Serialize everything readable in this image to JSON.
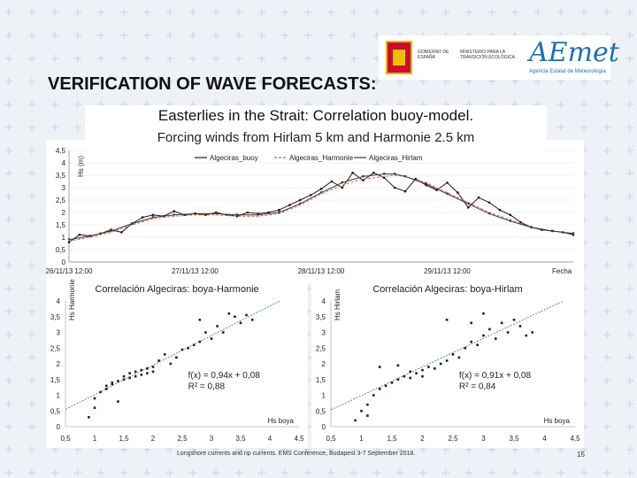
{
  "slide": {
    "title": "VERIFICATION OF WAVE FORECASTS:",
    "subtitle_line1": "Easterlies in the Strait: Correlation buoy-model.",
    "subtitle_line2": "Forcing winds from Hirlam 5 km and Harmonie 2.5 km",
    "footer": "Longshore currents and rip currents. EMS Conference, Budapest 3-7 September 2018.",
    "page_number": "15",
    "logos": {
      "gov_text": "GOBIERNO DE ESPAÑA",
      "ministry_text": "MINISTERIO PARA LA TRANSICIÓN ECOLÓGICA",
      "aemet_text": "AEmet",
      "aemet_sub": "Agencia Estatal de Meteorología"
    }
  },
  "colors": {
    "buoy": "#1a1a1a",
    "harmonie": "#e05a3a",
    "hirlam": "#3a3a3a",
    "trend": "#2a6fb0",
    "brand_blue": "#1f6fb5",
    "cross_pattern": "#d6dbe3"
  },
  "chart_data": [
    {
      "type": "line",
      "xlabel": "Fecha",
      "ylabel": "Hs (m)",
      "ylim": [
        0,
        4.5
      ],
      "yticks": [
        "0",
        "0,5",
        "1",
        "1,5",
        "2",
        "2,5",
        "3",
        "3,5",
        "4",
        "4,5"
      ],
      "xticks": [
        "26/11/13 12:00",
        "27/11/13 12:00",
        "28/11/13 12:00",
        "29/11/13 12:00"
      ],
      "x_range_hours": [
        0,
        96
      ],
      "legend": "top",
      "series": [
        {
          "name": "Algeciras_buoy",
          "marker": "dot",
          "x": [
            0,
            2,
            4,
            6,
            8,
            10,
            12,
            14,
            16,
            18,
            20,
            22,
            24,
            26,
            28,
            30,
            32,
            34,
            36,
            38,
            40,
            42,
            44,
            46,
            48,
            50,
            52,
            54,
            56,
            58,
            60,
            62,
            64,
            66,
            68,
            70,
            72,
            74,
            76,
            78,
            80,
            82,
            84,
            86,
            88,
            90,
            92,
            94,
            96
          ],
          "y": [
            0.8,
            1.1,
            1.05,
            1.15,
            1.3,
            1.2,
            1.55,
            1.8,
            1.9,
            1.85,
            2.05,
            1.9,
            1.95,
            1.9,
            2.0,
            1.9,
            1.85,
            2.0,
            1.95,
            2.0,
            2.1,
            2.3,
            2.5,
            2.7,
            2.95,
            3.25,
            3.0,
            3.6,
            3.3,
            3.6,
            3.4,
            3.0,
            2.85,
            3.35,
            3.1,
            2.9,
            3.2,
            2.8,
            2.2,
            2.6,
            2.4,
            2.1,
            1.9,
            1.6,
            1.4,
            1.3,
            1.25,
            1.2,
            1.1
          ]
        },
        {
          "name": "Algeciras_Harmonie",
          "marker": "dash",
          "x": [
            0,
            4,
            8,
            12,
            16,
            20,
            24,
            28,
            32,
            36,
            40,
            44,
            48,
            52,
            56,
            60,
            62,
            64,
            68,
            72,
            76,
            80,
            84,
            88,
            92,
            96
          ],
          "y": [
            0.85,
            1.0,
            1.2,
            1.5,
            1.75,
            1.85,
            1.9,
            1.9,
            1.85,
            1.85,
            1.95,
            2.3,
            2.75,
            3.1,
            3.35,
            3.45,
            3.5,
            3.45,
            3.2,
            2.8,
            2.4,
            2.0,
            1.7,
            1.4,
            1.25,
            1.15
          ]
        },
        {
          "name": "Algeciras_Hirlam",
          "marker": "triangle",
          "x": [
            0,
            4,
            8,
            12,
            16,
            20,
            24,
            28,
            32,
            36,
            40,
            44,
            48,
            52,
            56,
            60,
            62,
            64,
            68,
            72,
            76,
            80,
            84,
            88,
            92,
            96
          ],
          "y": [
            0.9,
            1.05,
            1.25,
            1.55,
            1.8,
            1.9,
            1.95,
            1.95,
            1.9,
            1.9,
            2.0,
            2.35,
            2.8,
            3.2,
            3.45,
            3.55,
            3.55,
            3.45,
            3.15,
            2.75,
            2.35,
            1.95,
            1.65,
            1.4,
            1.25,
            1.15
          ]
        }
      ]
    },
    {
      "type": "scatter",
      "title": "Correlación Algeciras: boya-Harmonie",
      "xlabel": "Hs boya",
      "ylabel": "Hs Harmonie",
      "xlim": [
        0.5,
        4.5
      ],
      "ylim": [
        0,
        4
      ],
      "xticks": [
        "0,5",
        "1",
        "1,5",
        "2",
        "2,5",
        "3",
        "3,5",
        "4",
        "4,5"
      ],
      "yticks": [
        "0",
        "0,5",
        "1",
        "1,5",
        "2",
        "2,5",
        "3",
        "3,5",
        "4"
      ],
      "equation": "f(x) = 0,94x + 0,08",
      "r2": "R² = 0,88",
      "trend": {
        "slope": 0.94,
        "intercept": 0.08
      },
      "points": [
        [
          0.9,
          0.3
        ],
        [
          1.0,
          0.6
        ],
        [
          1.0,
          0.9
        ],
        [
          1.1,
          1.1
        ],
        [
          1.2,
          1.3
        ],
        [
          1.2,
          1.2
        ],
        [
          1.3,
          1.35
        ],
        [
          1.3,
          1.4
        ],
        [
          1.4,
          1.45
        ],
        [
          1.5,
          1.5
        ],
        [
          1.5,
          1.6
        ],
        [
          1.6,
          1.55
        ],
        [
          1.6,
          1.7
        ],
        [
          1.7,
          1.6
        ],
        [
          1.7,
          1.75
        ],
        [
          1.8,
          1.8
        ],
        [
          1.8,
          1.65
        ],
        [
          1.9,
          1.7
        ],
        [
          1.9,
          1.85
        ],
        [
          2.0,
          1.9
        ],
        [
          2.0,
          1.75
        ],
        [
          2.1,
          2.1
        ],
        [
          2.2,
          2.3
        ],
        [
          2.3,
          2.0
        ],
        [
          2.4,
          2.2
        ],
        [
          2.5,
          2.45
        ],
        [
          2.6,
          2.5
        ],
        [
          2.7,
          2.6
        ],
        [
          2.8,
          2.7
        ],
        [
          2.9,
          3.0
        ],
        [
          3.0,
          2.8
        ],
        [
          3.1,
          3.2
        ],
        [
          3.2,
          3.0
        ],
        [
          3.3,
          3.6
        ],
        [
          3.4,
          3.5
        ],
        [
          3.5,
          3.3
        ],
        [
          3.6,
          3.55
        ],
        [
          3.7,
          3.4
        ],
        [
          1.4,
          0.8
        ],
        [
          2.8,
          3.4
        ]
      ]
    },
    {
      "type": "scatter",
      "title": "Correlación Algeciras: boya-Hirlam",
      "xlabel": "Hs boya",
      "ylabel": "Hs Hirlam",
      "xlim": [
        0.5,
        4.5
      ],
      "ylim": [
        0,
        4
      ],
      "xticks": [
        "0,5",
        "1",
        "1,5",
        "2",
        "2,5",
        "3",
        "3,5",
        "4",
        "4,5"
      ],
      "yticks": [
        "0",
        "0,5",
        "1",
        "1,5",
        "2",
        "2,5",
        "3",
        "3,5",
        "4"
      ],
      "equation": "f(x) = 0,91x + 0,08",
      "r2": "R² = 0,84",
      "trend": {
        "slope": 0.91,
        "intercept": 0.08
      },
      "points": [
        [
          0.9,
          0.2
        ],
        [
          1.0,
          0.5
        ],
        [
          1.1,
          0.7
        ],
        [
          1.2,
          1.0
        ],
        [
          1.3,
          1.2
        ],
        [
          1.4,
          1.3
        ],
        [
          1.5,
          1.4
        ],
        [
          1.6,
          1.5
        ],
        [
          1.7,
          1.6
        ],
        [
          1.8,
          1.55
        ],
        [
          1.8,
          1.75
        ],
        [
          1.9,
          1.7
        ],
        [
          2.0,
          1.8
        ],
        [
          2.0,
          1.6
        ],
        [
          2.1,
          1.9
        ],
        [
          2.2,
          1.85
        ],
        [
          2.3,
          2.0
        ],
        [
          2.4,
          2.1
        ],
        [
          2.5,
          2.3
        ],
        [
          2.6,
          2.2
        ],
        [
          2.7,
          2.5
        ],
        [
          2.8,
          2.7
        ],
        [
          2.9,
          2.6
        ],
        [
          3.0,
          2.9
        ],
        [
          3.1,
          3.1
        ],
        [
          3.2,
          2.8
        ],
        [
          3.3,
          3.3
        ],
        [
          3.4,
          3.0
        ],
        [
          3.5,
          3.4
        ],
        [
          3.6,
          3.2
        ],
        [
          3.7,
          2.9
        ],
        [
          3.8,
          3.0
        ],
        [
          1.3,
          1.9
        ],
        [
          1.6,
          1.95
        ],
        [
          2.4,
          3.4
        ],
        [
          3.0,
          3.6
        ],
        [
          1.1,
          0.35
        ],
        [
          2.8,
          3.3
        ]
      ]
    }
  ]
}
